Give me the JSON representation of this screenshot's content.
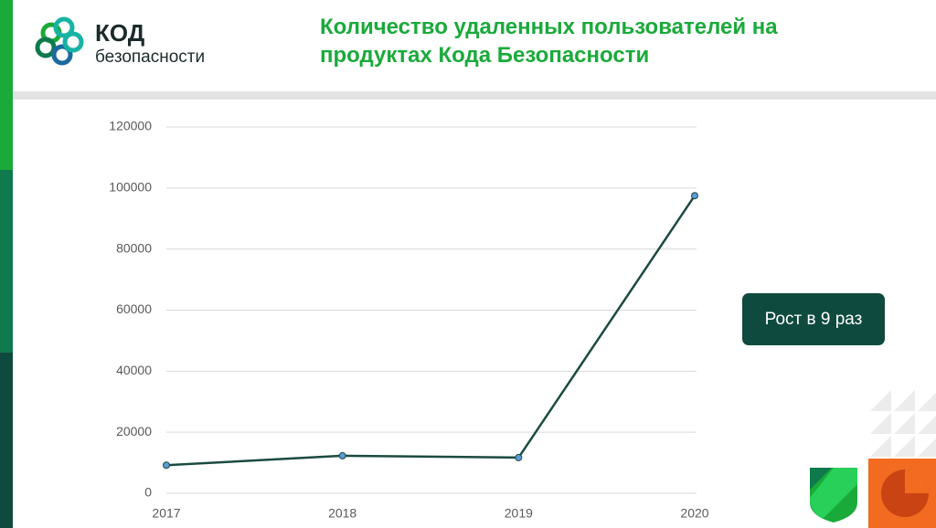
{
  "logo": {
    "name": "КОД",
    "tagline": "безопасности"
  },
  "chart_data": {
    "type": "line",
    "title": "Количество удаленных пользователей на продуктах Кода Безопасности",
    "annotation": "Рост в 9 раз",
    "categories": [
      "2017",
      "2018",
      "2019",
      "2020"
    ],
    "series": [
      {
        "color": "#1b4a41",
        "marker_color": "#5b9bd5",
        "values": [
          9200,
          12300,
          11700,
          97500
        ]
      }
    ],
    "ylim": [
      0,
      120000
    ],
    "yticks": [
      0,
      20000,
      40000,
      60000,
      80000,
      100000,
      120000
    ],
    "grid": true
  }
}
